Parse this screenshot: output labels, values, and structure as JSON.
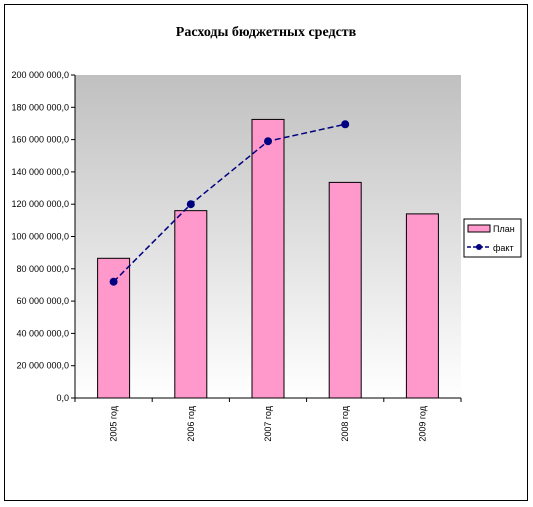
{
  "chart_data": {
    "type": "bar",
    "title": "Расходы бюджетных средств",
    "xlabel": "",
    "ylabel": "",
    "categories": [
      "2005 год",
      "2006 год",
      "2007 год",
      "2008 год",
      "2009 год"
    ],
    "series": [
      {
        "name": "План",
        "type": "bar",
        "values": [
          86500000,
          116000000,
          172500000,
          133500000,
          114000000
        ],
        "color": "#ff99cc"
      },
      {
        "name": "факт",
        "type": "line",
        "values": [
          72000000,
          120000000,
          159000000,
          169500000,
          null
        ],
        "color": "#000080"
      }
    ],
    "ylim": [
      0,
      200000000
    ],
    "yticks": [
      0,
      20000000,
      40000000,
      60000000,
      80000000,
      100000000,
      120000000,
      140000000,
      160000000,
      180000000,
      200000000
    ],
    "ytick_labels": [
      "0,0",
      "20 000 000,0",
      "40 000 000,0",
      "60 000 000,0",
      "80 000 000,0",
      "100 000 000,0",
      "120 000 000,0",
      "140 000 000,0",
      "160 000 000,0",
      "180 000 000,0",
      "200 000 000,0"
    ],
    "grid": false,
    "legend_position": "right",
    "plot_background": "gradient gray to white"
  }
}
